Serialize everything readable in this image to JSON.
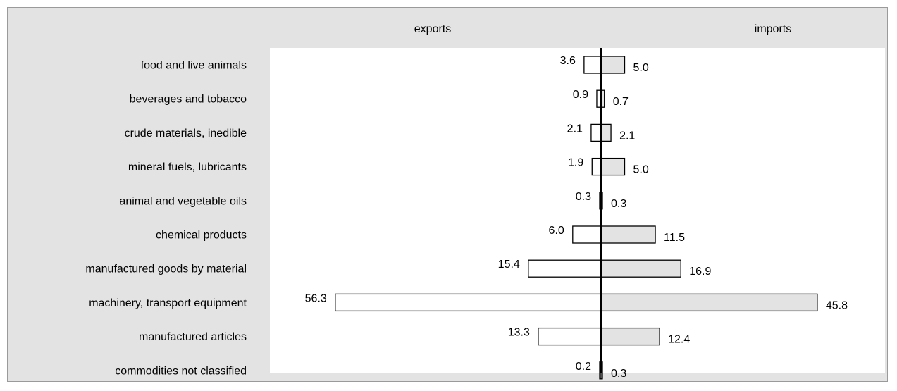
{
  "chart_data": {
    "type": "bar",
    "orientation": "horizontal-diverging",
    "headers": {
      "left": "exports",
      "right": "imports"
    },
    "categories": [
      "food and live animals",
      "beverages and tobacco",
      "crude materials, inedible",
      "mineral fuels, lubricants",
      "animal and vegetable oils",
      "chemical products",
      "manufactured goods by material",
      "machinery, transport equipment",
      "manufactured articles",
      "commodities not classified"
    ],
    "series": [
      {
        "name": "exports",
        "values": [
          3.6,
          0.9,
          2.1,
          1.9,
          0.3,
          6.0,
          15.4,
          56.3,
          13.3,
          0.2
        ],
        "labels": [
          "3.6",
          "0.9",
          "2.1",
          "1.9",
          "0.3",
          "6.0",
          "15.4",
          "56.3",
          "13.3",
          "0.2"
        ],
        "color": "#ffffff"
      },
      {
        "name": "imports",
        "values": [
          5.0,
          0.7,
          2.1,
          5.0,
          0.3,
          11.5,
          16.9,
          45.8,
          12.4,
          0.3
        ],
        "labels": [
          "5.0",
          "0.7",
          "2.1",
          "5.0",
          "0.3",
          "11.5",
          "16.9",
          "45.8",
          "12.4",
          "0.3"
        ],
        "color": "#e3e3e3"
      }
    ],
    "xlim": [
      -60,
      60
    ],
    "grid": false,
    "legend": "none",
    "colors": {
      "frame_bg": "#e3e3e3",
      "plot_bg": "#ffffff",
      "border": "#000000"
    }
  }
}
